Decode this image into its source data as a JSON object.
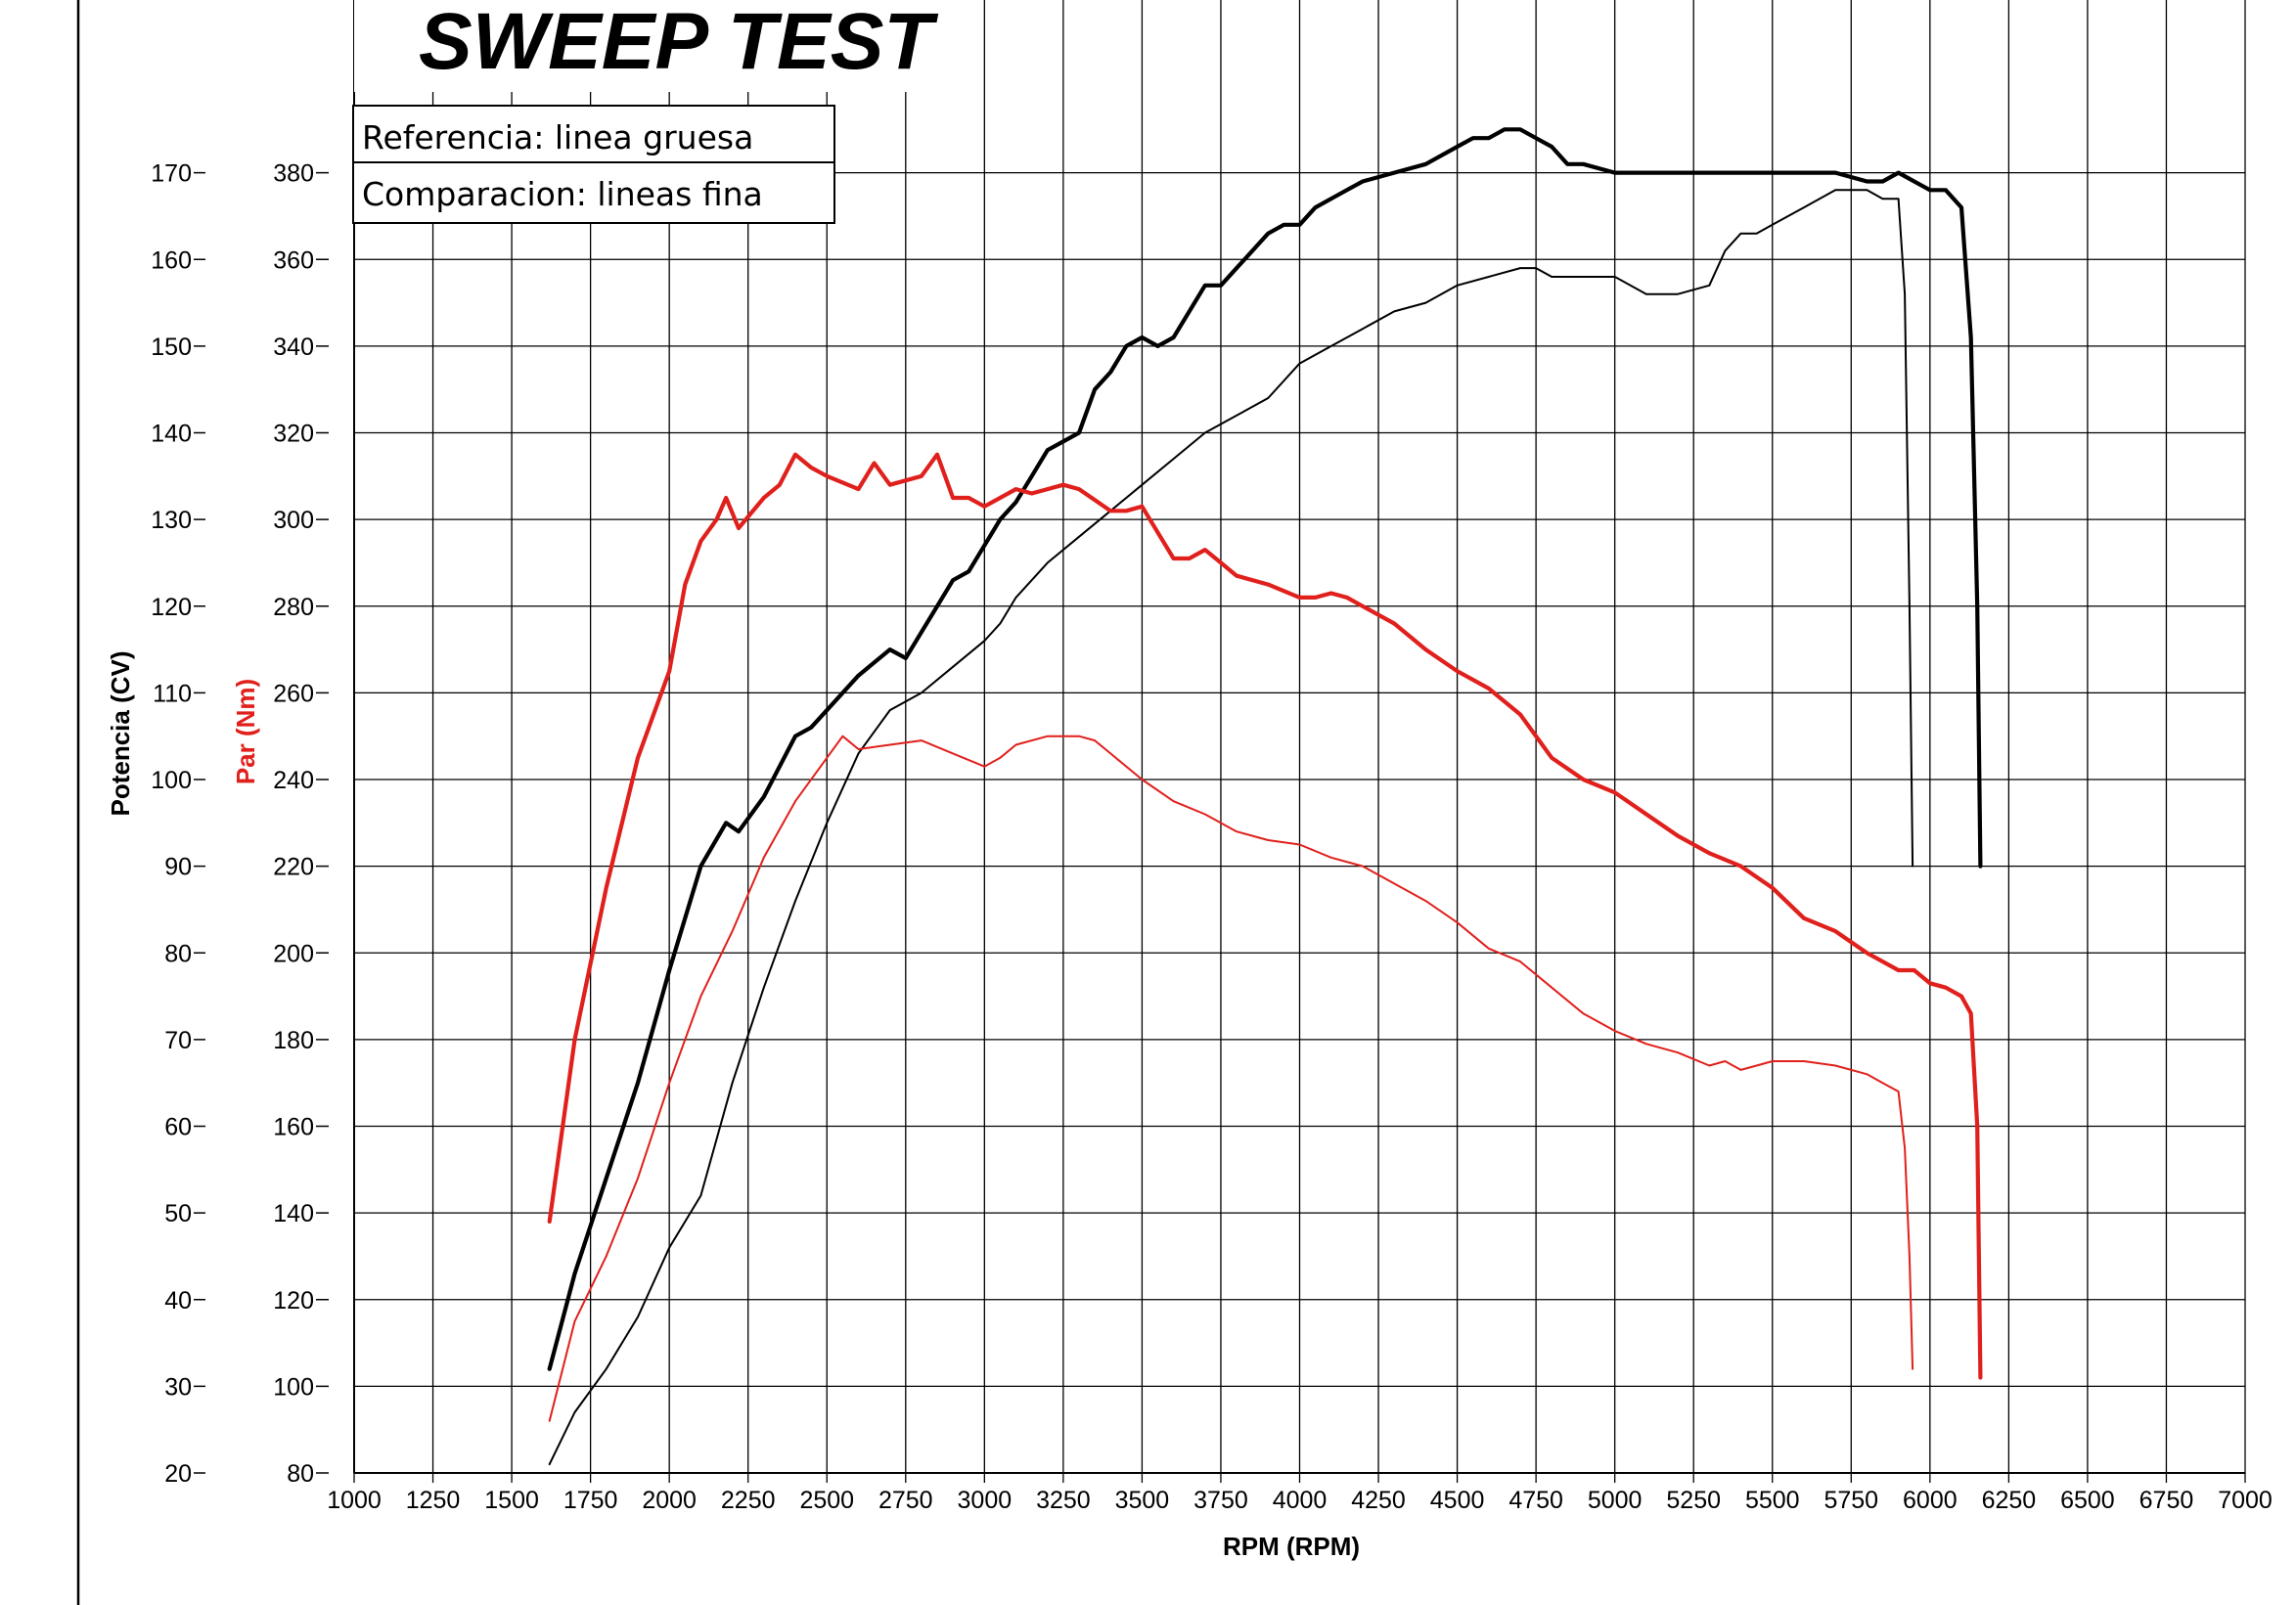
{
  "chart_data": {
    "type": "line",
    "title": "SWEEP TEST",
    "legend": [
      "Referencia: linea gruesa",
      "Comparacion: lineas fina"
    ],
    "xlabel": "RPM (RPM)",
    "ylabel_left": "Potencia (CV)",
    "ylabel_right": "Par (Nm)",
    "xlim": [
      1000,
      7000
    ],
    "ylim_power": [
      20,
      180
    ],
    "ylim_torque": [
      80,
      400
    ],
    "x_ticks": [
      "1000",
      "1250",
      "1500",
      "1750",
      "2000",
      "2250",
      "2500",
      "2750",
      "3000",
      "3250",
      "3500",
      "3750",
      "4000",
      "4250",
      "4500",
      "4750",
      "5000",
      "5250",
      "5500",
      "5750",
      "6000",
      "6250",
      "6500",
      "6750",
      "7000"
    ],
    "power_ticks": [
      "20",
      "30",
      "40",
      "50",
      "60",
      "70",
      "80",
      "90",
      "100",
      "110",
      "120",
      "130",
      "140",
      "150",
      "160",
      "170"
    ],
    "torque_ticks": [
      "80",
      "100",
      "120",
      "140",
      "160",
      "180",
      "200",
      "220",
      "240",
      "260",
      "280",
      "300",
      "320",
      "340",
      "360",
      "380"
    ],
    "grid": true,
    "colors": {
      "power": "#000000",
      "torque": "#e0201c"
    },
    "series": [
      {
        "axis": "power",
        "weight": "thick",
        "x": [
          1620,
          1700,
          1800,
          1900,
          2000,
          2100,
          2180,
          2220,
          2300,
          2400,
          2450,
          2500,
          2600,
          2700,
          2750,
          2800,
          2850,
          2900,
          2950,
          3000,
          3050,
          3100,
          3150,
          3200,
          3250,
          3300,
          3350,
          3400,
          3450,
          3500,
          3550,
          3600,
          3650,
          3700,
          3750,
          3800,
          3850,
          3900,
          3950,
          4000,
          4050,
          4100,
          4150,
          4200,
          4300,
          4400,
          4500,
          4550,
          4600,
          4650,
          4700,
          4750,
          4800,
          4850,
          4900,
          5000,
          5100,
          5200,
          5250,
          5300,
          5400,
          5500,
          5600,
          5700,
          5800,
          5850,
          5900,
          6000,
          6050,
          6100,
          6130,
          6150,
          6160
        ],
        "y": [
          32,
          43,
          54,
          65,
          78,
          90,
          95,
          94,
          98,
          105,
          106,
          108,
          112,
          115,
          114,
          117,
          120,
          123,
          124,
          127,
          130,
          132,
          135,
          138,
          139,
          140,
          145,
          147,
          150,
          151,
          150,
          151,
          154,
          157,
          157,
          159,
          161,
          163,
          164,
          164,
          166,
          167,
          168,
          169,
          170,
          171,
          173,
          174,
          174,
          175,
          175,
          174,
          173,
          171,
          171,
          170,
          170,
          170,
          170,
          170,
          170,
          170,
          170,
          170,
          169,
          169,
          170,
          168,
          168,
          166,
          151,
          120,
          90
        ]
      },
      {
        "axis": "power",
        "weight": "thin",
        "x": [
          1620,
          1700,
          1800,
          1900,
          2000,
          2100,
          2200,
          2300,
          2400,
          2500,
          2600,
          2700,
          2800,
          2900,
          3000,
          3050,
          3100,
          3200,
          3300,
          3400,
          3500,
          3600,
          3700,
          3800,
          3900,
          4000,
          4100,
          4200,
          4300,
          4400,
          4500,
          4600,
          4700,
          4750,
          4800,
          4900,
          5000,
          5100,
          5200,
          5300,
          5350,
          5400,
          5450,
          5500,
          5600,
          5700,
          5800,
          5850,
          5900,
          5920,
          5935,
          5945
        ],
        "y": [
          21,
          27,
          32,
          38,
          46,
          52,
          65,
          76,
          86,
          95,
          103,
          108,
          110,
          113,
          116,
          118,
          121,
          125,
          128,
          131,
          134,
          137,
          140,
          142,
          144,
          148,
          150,
          152,
          154,
          155,
          157,
          158,
          159,
          159,
          158,
          158,
          158,
          156,
          156,
          157,
          161,
          163,
          163,
          164,
          166,
          168,
          168,
          167,
          167,
          156,
          120,
          90
        ]
      },
      {
        "axis": "torque",
        "weight": "thick",
        "x": [
          1620,
          1700,
          1800,
          1900,
          2000,
          2050,
          2100,
          2150,
          2180,
          2220,
          2300,
          2350,
          2400,
          2450,
          2500,
          2600,
          2650,
          2700,
          2800,
          2850,
          2900,
          2950,
          3000,
          3050,
          3100,
          3150,
          3200,
          3250,
          3300,
          3400,
          3450,
          3500,
          3550,
          3600,
          3650,
          3700,
          3750,
          3800,
          3900,
          4000,
          4050,
          4100,
          4150,
          4200,
          4250,
          4300,
          4400,
          4500,
          4600,
          4700,
          4800,
          4900,
          5000,
          5100,
          5200,
          5300,
          5400,
          5500,
          5600,
          5700,
          5800,
          5900,
          5950,
          6000,
          6050,
          6100,
          6130,
          6150,
          6160
        ],
        "y": [
          138,
          180,
          215,
          245,
          265,
          285,
          295,
          300,
          305,
          298,
          305,
          308,
          315,
          312,
          310,
          307,
          313,
          308,
          310,
          315,
          305,
          305,
          303,
          305,
          307,
          306,
          307,
          308,
          307,
          302,
          302,
          303,
          297,
          291,
          291,
          293,
          290,
          287,
          285,
          282,
          282,
          283,
          282,
          280,
          278,
          276,
          270,
          265,
          261,
          255,
          245,
          240,
          237,
          232,
          227,
          223,
          220,
          215,
          208,
          205,
          200,
          196,
          196,
          193,
          192,
          190,
          186,
          160,
          102
        ]
      },
      {
        "axis": "torque",
        "weight": "thin",
        "x": [
          1620,
          1700,
          1800,
          1900,
          2000,
          2100,
          2200,
          2300,
          2400,
          2500,
          2550,
          2600,
          2700,
          2800,
          2900,
          3000,
          3050,
          3100,
          3200,
          3300,
          3350,
          3400,
          3500,
          3600,
          3700,
          3800,
          3900,
          4000,
          4100,
          4200,
          4300,
          4400,
          4500,
          4600,
          4700,
          4800,
          4900,
          5000,
          5100,
          5200,
          5300,
          5350,
          5400,
          5450,
          5500,
          5600,
          5700,
          5800,
          5850,
          5900,
          5920,
          5935,
          5945
        ],
        "y": [
          92,
          115,
          130,
          148,
          170,
          190,
          205,
          222,
          235,
          245,
          250,
          247,
          248,
          249,
          246,
          243,
          245,
          248,
          250,
          250,
          249,
          246,
          240,
          235,
          232,
          228,
          226,
          225,
          222,
          220,
          216,
          212,
          207,
          201,
          198,
          192,
          186,
          182,
          179,
          177,
          174,
          175,
          173,
          174,
          175,
          175,
          174,
          172,
          170,
          168,
          155,
          130,
          104
        ]
      }
    ]
  }
}
